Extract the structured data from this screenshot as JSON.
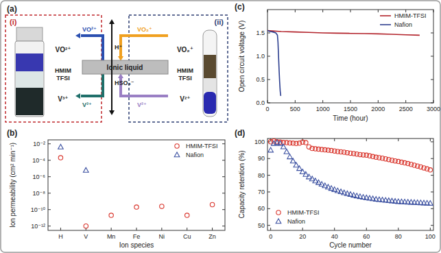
{
  "diagram": {
    "panel_label": "(a)",
    "left_box": {
      "label": "(i)",
      "color": "#c0282d",
      "top": "VO²⁺",
      "middle": [
        "HMIM",
        "TFSI"
      ],
      "bottom": "V³⁺"
    },
    "right_box": {
      "label": "(ii)",
      "color": "#2c3e73",
      "top": "VO₂⁺",
      "middle": [
        "HMIM",
        "TFSI"
      ],
      "bottom": "V²⁺"
    },
    "membrane": "Ionic liquid",
    "arrows": [
      {
        "label": "VO²⁺",
        "color": "#2a4fb0"
      },
      {
        "label": "VO₂⁺",
        "color": "#f0a020"
      },
      {
        "label": "V³⁺",
        "color": "#1f6f6a"
      },
      {
        "label": "V²⁺",
        "color": "#9a7fc4"
      }
    ],
    "crossing": [
      "H⁺",
      "HSO₄⁻"
    ]
  },
  "chart_data": [
    {
      "type": "scatter",
      "panel_label": "(b)",
      "x_label": "Ion species",
      "y_label": "Ion permeability (cm² min⁻¹)",
      "categories": [
        "H",
        "V",
        "Mn",
        "Fe",
        "Ni",
        "Cu",
        "Zn"
      ],
      "log": "y",
      "ylim": [
        3e-13,
        0.03
      ],
      "yticks": [
        {
          "value": 1e-12,
          "label": "10⁻¹²"
        },
        {
          "value": 1e-10,
          "label": "10⁻¹⁰"
        },
        {
          "value": 1e-08,
          "label": "10⁻⁸"
        },
        {
          "value": 1e-06,
          "label": "10⁻⁶"
        },
        {
          "value": 0.0001,
          "label": "10⁻⁴"
        },
        {
          "value": 0.01,
          "label": "10⁻²"
        }
      ],
      "grid": false,
      "legend": "upper right",
      "series": [
        {
          "name": "HMIM-TFSI",
          "color": "#d9342b",
          "marker": "circle",
          "values": [
            0.0002,
            1e-12,
            2e-11,
            2e-10,
            2.5e-10,
            2e-11,
            4e-10
          ]
        },
        {
          "name": "Nafion",
          "color": "#3a4fa0",
          "marker": "triangle",
          "values": [
            0.004,
            6e-06,
            null,
            null,
            null,
            null,
            null
          ]
        }
      ]
    },
    {
      "type": "line",
      "panel_label": "(c)",
      "x_label": "Time (hour)",
      "y_label": "Open circuit voltage (V)",
      "xlim": [
        0,
        3000
      ],
      "xticks": [
        0,
        500,
        1000,
        1500,
        2000,
        2500,
        3000
      ],
      "ylim": [
        0,
        2.0
      ],
      "yticks": [
        {
          "value": 0,
          "label": "0.0"
        },
        {
          "value": 0.5,
          "label": "0.5"
        },
        {
          "value": 1.0,
          "label": "1.0"
        },
        {
          "value": 1.5,
          "label": "1.5"
        }
      ],
      "grid": false,
      "legend": "upper right",
      "series": [
        {
          "name": "HMIM-TFSI",
          "color": "#b2222a",
          "line_style": "solid",
          "x": [
            0,
            250,
            500,
            750,
            1000,
            1250,
            1500,
            1750,
            2000,
            2250,
            2500,
            2750
          ],
          "values": [
            1.55,
            1.53,
            1.52,
            1.51,
            1.5,
            1.495,
            1.49,
            1.485,
            1.48,
            1.47,
            1.46,
            1.45
          ]
        },
        {
          "name": "Nafion",
          "color": "#2c3e8f",
          "line_style": "solid",
          "x": [
            0,
            50,
            100,
            150,
            180,
            190,
            200,
            210,
            220,
            230,
            240
          ],
          "values": [
            1.55,
            1.53,
            1.52,
            1.5,
            1.45,
            1.3,
            1.0,
            0.7,
            0.45,
            0.25,
            0.15
          ]
        }
      ]
    },
    {
      "type": "scatter",
      "panel_label": "(d)",
      "x_label": "Cycle number",
      "y_label": "Capacity retention (%)",
      "xlim": [
        -2,
        102
      ],
      "xticks": [
        0,
        20,
        40,
        60,
        80,
        100
      ],
      "ylim": [
        47,
        102
      ],
      "yticks": [
        50,
        60,
        70,
        80,
        90,
        100
      ],
      "grid": false,
      "legend": "lower left",
      "x": [
        0,
        2,
        4,
        6,
        8,
        10,
        12,
        14,
        16,
        18,
        20,
        22,
        24,
        26,
        28,
        30,
        32,
        34,
        36,
        38,
        40,
        42,
        44,
        46,
        48,
        50,
        52,
        54,
        56,
        58,
        60,
        62,
        64,
        66,
        68,
        70,
        72,
        74,
        76,
        78,
        80,
        82,
        84,
        86,
        88,
        90,
        92,
        94,
        96,
        98,
        100
      ],
      "series": [
        {
          "name": "HMIM-TFSI",
          "color": "#d9342b",
          "marker": "circle",
          "values": [
            100,
            100.5,
            100,
            99.8,
            99.6,
            99.5,
            99.3,
            99.2,
            99,
            99.2,
            99.8,
            99.5,
            97,
            96,
            95.8,
            95.6,
            95.4,
            95.2,
            95,
            94.8,
            94.5,
            94.2,
            94,
            93.8,
            93.5,
            93.2,
            93,
            92.7,
            92.4,
            92.2,
            92,
            91.6,
            91.2,
            90.8,
            90.5,
            90.2,
            89.8,
            89.4,
            89,
            88.6,
            88.2,
            87.8,
            87.4,
            87,
            86.5,
            86,
            85.5,
            85,
            84.4,
            83.8,
            83.2
          ]
        },
        {
          "name": "Nafion",
          "color": "#3a4fa0",
          "marker": "triangle",
          "values": [
            95,
            99,
            99.5,
            99,
            97,
            94,
            91,
            88.5,
            86,
            84,
            82,
            80.5,
            79,
            77.8,
            76.6,
            75.6,
            74.6,
            73.7,
            72.9,
            72.1,
            71.4,
            70.7,
            70.1,
            69.5,
            69,
            68.5,
            68,
            67.6,
            67.2,
            66.8,
            66.5,
            66.2,
            65.9,
            65.6,
            65.4,
            65.2,
            65,
            64.8,
            64.6,
            64.4,
            64.2,
            64.1,
            64,
            63.9,
            63.8,
            63.7,
            63.6,
            63.5,
            63.4,
            63.3,
            63.2
          ]
        }
      ]
    }
  ]
}
